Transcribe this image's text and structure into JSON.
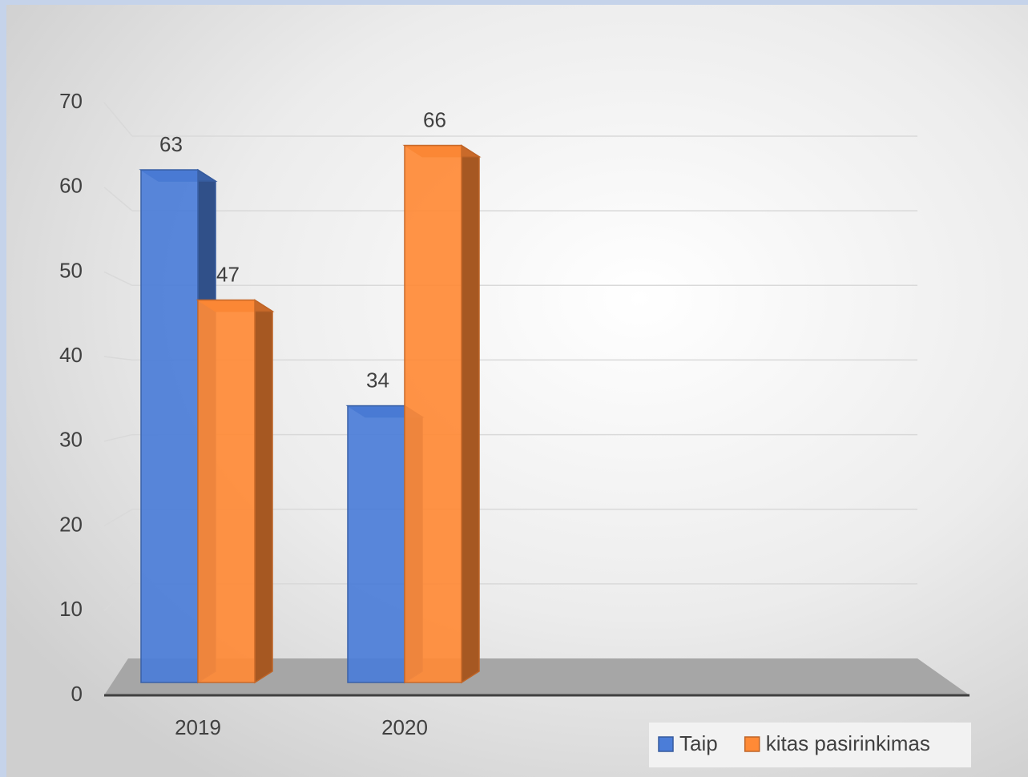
{
  "chart_data": {
    "type": "bar",
    "categories": [
      "2019",
      "2020"
    ],
    "series": [
      {
        "name": "Taip",
        "color": "#4472c4",
        "values": [
          63,
          34
        ]
      },
      {
        "name": "kitas pasirinkimas",
        "color": "#ed7d31",
        "values": [
          47,
          66
        ]
      }
    ],
    "ylim": [
      0,
      70
    ],
    "yticks": [
      0,
      10,
      20,
      30,
      40,
      50,
      60,
      70
    ],
    "grid": true,
    "legend": "bottom-right"
  }
}
